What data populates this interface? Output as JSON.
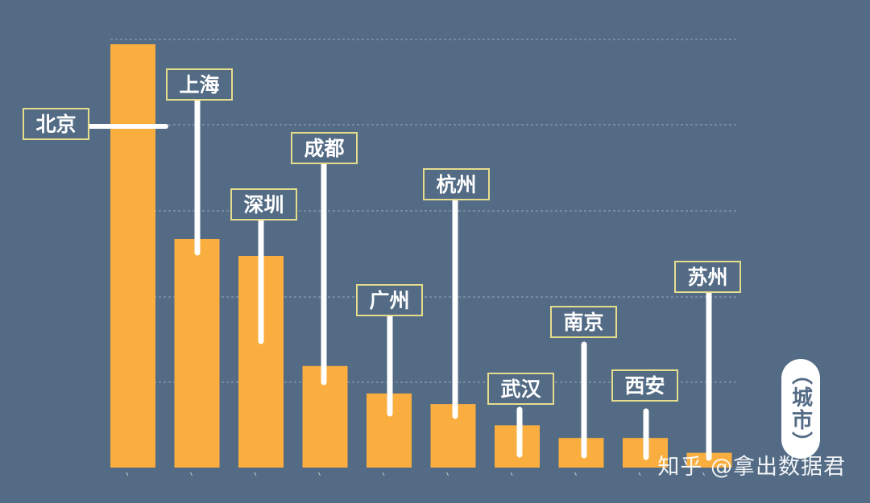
{
  "chart_data": {
    "type": "bar",
    "categories": [
      "北京",
      "上海",
      "深圳",
      "成都",
      "广州",
      "杭州",
      "武汉",
      "南京",
      "西安",
      "苏州"
    ],
    "values": [
      100,
      54,
      50,
      24,
      17.5,
      15,
      10,
      7,
      7,
      3.5
    ],
    "ylim": [
      0,
      100
    ],
    "grid": true,
    "xlabel": "（城市）",
    "colors": {
      "background": "#536b85",
      "bar": "#f9ae3f",
      "label_border": "#e5dc8c",
      "leader": "#ffffff",
      "grid": "#9aaabd"
    }
  },
  "watermark": "知乎 @拿出数据君"
}
